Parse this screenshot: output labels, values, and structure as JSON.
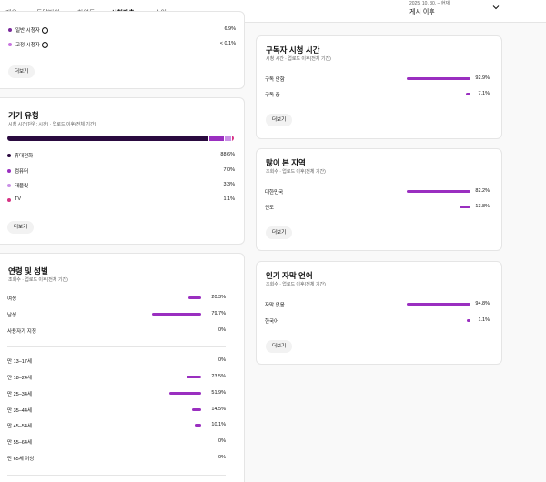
{
  "tabs": [
    {
      "label": "개요"
    },
    {
      "label": "도달범위"
    },
    {
      "label": "참여도"
    },
    {
      "label": "시청자층"
    },
    {
      "label": "수익"
    }
  ],
  "date": {
    "range": "2025. 10. 30. – 현재",
    "label": "게시 이후"
  },
  "viewer_type_card": {
    "rows": [
      {
        "label": "일반 시청자",
        "value": "6.9%",
        "dot": "#7b2a9c"
      },
      {
        "label": "고정 시청자",
        "value": "< 0.1%",
        "dot": "#c874e0"
      }
    ],
    "more": "더보기"
  },
  "device_card": {
    "title": "기기 유형",
    "subtitle": "시청 시간(단위: 시간) · 업로드 이후(전체 기간)",
    "rows": [
      {
        "label": "휴대전화",
        "value": "88.6%",
        "share": 88.6,
        "color": "#2a0a3f"
      },
      {
        "label": "컴퓨터",
        "value": "7.0%",
        "share": 7.0,
        "color": "#9a2fc0"
      },
      {
        "label": "태블릿",
        "value": "3.3%",
        "share": 3.3,
        "color": "#c98fe6"
      },
      {
        "label": "TV",
        "value": "1.1%",
        "share": 1.1,
        "color": "#d63384"
      }
    ],
    "more": "더보기"
  },
  "age_gender_card": {
    "title": "연령 및 성별",
    "subtitle": "조회수 · 업로드 이후(전체 기간)",
    "gender": [
      {
        "label": "여성",
        "value": "20.3%",
        "share": 20.3
      },
      {
        "label": "남성",
        "value": "79.7%",
        "share": 79.7
      },
      {
        "label": "사용자가 지정",
        "value": "0%",
        "share": 0
      }
    ],
    "age": [
      {
        "label": "만 13–17세",
        "value": "0%",
        "share": 0
      },
      {
        "label": "만 18–24세",
        "value": "23.5%",
        "share": 23.5
      },
      {
        "label": "만 25–34세",
        "value": "51.9%",
        "share": 51.9
      },
      {
        "label": "만 35–44세",
        "value": "14.5%",
        "share": 14.5
      },
      {
        "label": "만 45–54세",
        "value": "10.1%",
        "share": 10.1
      },
      {
        "label": "만 55–64세",
        "value": "0%",
        "share": 0
      },
      {
        "label": "만 65세 이상",
        "value": "0%",
        "share": 0
      }
    ]
  },
  "subscriber_card": {
    "title": "구독자 시청 시간",
    "subtitle": "시청 시간 · 업로드 이후(전체 기간)",
    "rows": [
      {
        "label": "구독 안함",
        "value": "92.9%",
        "share": 92.9
      },
      {
        "label": "구독 중",
        "value": "7.1%",
        "share": 7.1
      }
    ],
    "more": "더보기"
  },
  "geo_card": {
    "title": "많이 본 지역",
    "subtitle": "조회수 · 업로드 이후(전체 기간)",
    "rows": [
      {
        "label": "대한민국",
        "value": "82.2%",
        "share": 82.2
      },
      {
        "label": "인도",
        "value": "13.8%",
        "share": 13.8
      }
    ],
    "more": "더보기"
  },
  "subtitle_card": {
    "title": "인기 자막 언어",
    "subtitle": "조회수 · 업로드 이후(전체 기간)",
    "rows": [
      {
        "label": "자막 없음",
        "value": "94.8%",
        "share": 94.8
      },
      {
        "label": "한국어",
        "value": "1.1%",
        "share": 1.1
      }
    ],
    "more": "더보기"
  },
  "colors": {
    "accent": "#9a2fc0"
  }
}
